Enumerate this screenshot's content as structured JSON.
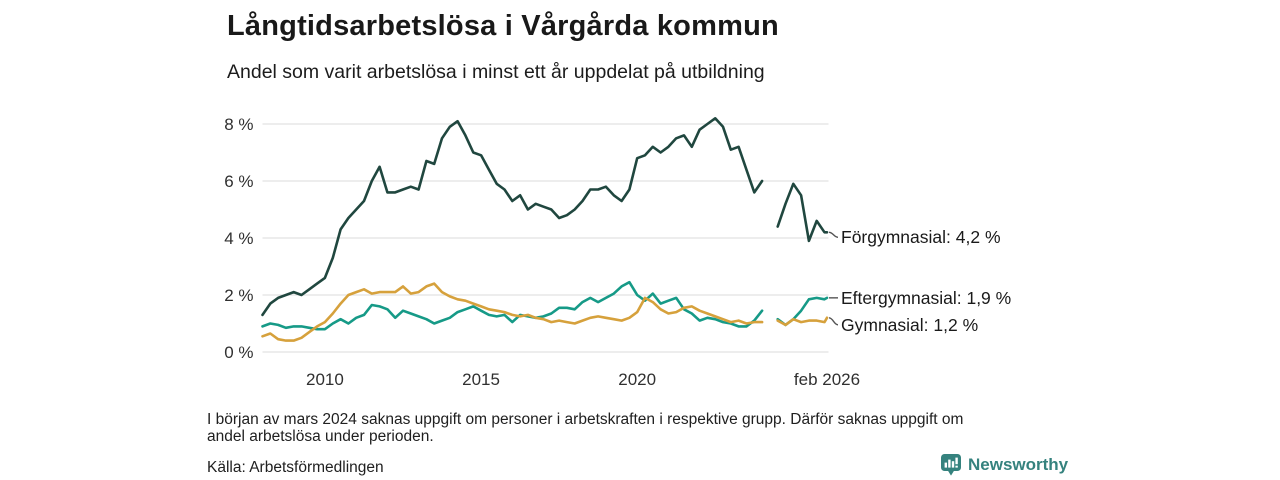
{
  "page": {
    "title": "Långtidsarbetslösa i Vårgårda kommun",
    "subtitle": "Andel som varit arbetslösa i minst ett år uppdelat på utbildning",
    "footnote_lines": [
      "I början av mars 2024 saknas uppgift om personer i arbetskraften i respektive grupp. Därför saknas uppgift om",
      "andel arbetslösa under perioden."
    ],
    "source": "Källa: Arbetsförmedlingen",
    "logo_text": "Newsworthy",
    "logo_icon": "bar-chart-speech-bubble",
    "logo_color": "#35827e"
  },
  "chart_data": {
    "type": "line",
    "title": "Långtidsarbetslösa i Vårgårda kommun",
    "subtitle": "Andel som varit arbetslösa i minst ett år uppdelat på utbildning",
    "xlabel": "",
    "ylabel": "",
    "xlim": [
      2008,
      2026.08
    ],
    "ylim": [
      0,
      8
    ],
    "grid": true,
    "gridline_color": "#e2e2e2",
    "tick_color": "#303030",
    "x_ticks": [
      {
        "label": "2010",
        "value": 2010
      },
      {
        "label": "2015",
        "value": 2015
      },
      {
        "label": "2020",
        "value": 2020
      },
      {
        "label": "feb 2026",
        "value": 2026.08
      }
    ],
    "y_ticks": [
      {
        "label": "0 %",
        "value": 0
      },
      {
        "label": "2 %",
        "value": 2
      },
      {
        "label": "4 %",
        "value": 4
      },
      {
        "label": "6 %",
        "value": 6
      },
      {
        "label": "8 %",
        "value": 8
      }
    ],
    "x": [
      2008.0,
      2008.25,
      2008.5,
      2008.75,
      2009.0,
      2009.25,
      2009.5,
      2009.75,
      2010.0,
      2010.25,
      2010.5,
      2010.75,
      2011.0,
      2011.25,
      2011.5,
      2011.75,
      2012.0,
      2012.25,
      2012.5,
      2012.75,
      2013.0,
      2013.25,
      2013.5,
      2013.75,
      2014.0,
      2014.25,
      2014.5,
      2014.75,
      2015.0,
      2015.25,
      2015.5,
      2015.75,
      2016.0,
      2016.25,
      2016.5,
      2016.75,
      2017.0,
      2017.25,
      2017.5,
      2017.75,
      2018.0,
      2018.25,
      2018.5,
      2018.75,
      2019.0,
      2019.25,
      2019.5,
      2019.75,
      2020.0,
      2020.25,
      2020.5,
      2020.75,
      2021.0,
      2021.25,
      2021.5,
      2021.75,
      2022.0,
      2022.25,
      2022.5,
      2022.75,
      2023.0,
      2023.25,
      2023.5,
      2023.75,
      2024.0,
      2024.25,
      2024.5,
      2024.75,
      2025.0,
      2025.25,
      2025.5,
      2025.75,
      2026.0,
      2026.08
    ],
    "series": [
      {
        "name": "Förgymnasial",
        "color": "#20473f",
        "end_value": 4.2,
        "end_label": "Förgymnasial: 4,2 %",
        "values": [
          1.3,
          1.7,
          1.9,
          2.0,
          2.1,
          2.0,
          2.2,
          2.4,
          2.6,
          3.3,
          4.3,
          4.7,
          5.0,
          5.3,
          6.0,
          6.5,
          5.6,
          5.6,
          5.7,
          5.8,
          5.7,
          6.7,
          6.6,
          7.5,
          7.9,
          8.1,
          7.6,
          7.0,
          6.9,
          6.4,
          5.9,
          5.7,
          5.3,
          5.5,
          5.0,
          5.2,
          5.1,
          5.0,
          4.7,
          4.8,
          5.0,
          5.3,
          5.7,
          5.7,
          5.8,
          5.5,
          5.3,
          5.7,
          6.8,
          6.9,
          7.2,
          7.0,
          7.2,
          7.5,
          7.6,
          7.2,
          7.8,
          8.0,
          8.2,
          7.9,
          7.1,
          7.2,
          6.4,
          5.6,
          6.0,
          null,
          4.4,
          5.2,
          5.9,
          5.5,
          3.9,
          4.6,
          4.2,
          4.2
        ]
      },
      {
        "name": "Eftergymnasial",
        "color": "#169a87",
        "end_value": 1.9,
        "end_label": "Eftergymnasial: 1,9 %",
        "values": [
          0.9,
          1.0,
          0.95,
          0.85,
          0.9,
          0.9,
          0.85,
          0.8,
          0.8,
          1.0,
          1.15,
          1.0,
          1.2,
          1.3,
          1.65,
          1.6,
          1.5,
          1.2,
          1.45,
          1.35,
          1.25,
          1.15,
          1.0,
          1.1,
          1.2,
          1.4,
          1.5,
          1.6,
          1.45,
          1.3,
          1.25,
          1.3,
          1.05,
          1.3,
          1.25,
          1.2,
          1.25,
          1.35,
          1.55,
          1.55,
          1.5,
          1.75,
          1.9,
          1.75,
          1.9,
          2.05,
          2.3,
          2.45,
          2.0,
          1.8,
          2.05,
          1.7,
          1.8,
          1.9,
          1.5,
          1.35,
          1.1,
          1.2,
          1.15,
          1.05,
          1.0,
          0.9,
          0.9,
          1.1,
          1.45,
          null,
          1.15,
          0.95,
          1.15,
          1.45,
          1.85,
          1.9,
          1.85,
          1.9
        ]
      },
      {
        "name": "Gymnasial",
        "color": "#d6a13c",
        "end_value": 1.2,
        "end_label": "Gymnasial: 1,2 %",
        "values": [
          0.55,
          0.65,
          0.45,
          0.4,
          0.4,
          0.5,
          0.7,
          0.9,
          1.05,
          1.35,
          1.7,
          2.0,
          2.1,
          2.2,
          2.05,
          2.1,
          2.1,
          2.1,
          2.3,
          2.05,
          2.1,
          2.3,
          2.4,
          2.1,
          1.95,
          1.85,
          1.8,
          1.7,
          1.6,
          1.5,
          1.45,
          1.4,
          1.3,
          1.25,
          1.3,
          1.2,
          1.15,
          1.05,
          1.1,
          1.05,
          1.0,
          1.1,
          1.2,
          1.25,
          1.2,
          1.15,
          1.1,
          1.2,
          1.4,
          1.9,
          1.75,
          1.5,
          1.35,
          1.4,
          1.55,
          1.6,
          1.45,
          1.35,
          1.25,
          1.15,
          1.05,
          1.1,
          1.0,
          1.05,
          1.05,
          null,
          1.1,
          0.95,
          1.15,
          1.05,
          1.1,
          1.1,
          1.05,
          1.2
        ]
      }
    ],
    "legend_position": "right-end-labels",
    "missing_data_gap": "2024"
  }
}
